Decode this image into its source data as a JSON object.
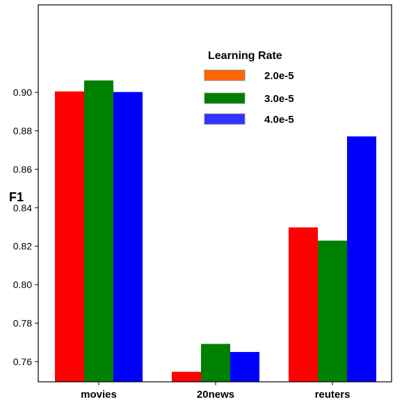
{
  "chart_data": {
    "type": "bar",
    "title": "",
    "xlabel": "",
    "ylabel": "F1",
    "ylim": [
      0.7495,
      0.9455
    ],
    "yticks": [
      "0.76",
      "0.78",
      "0.80",
      "0.82",
      "0.84",
      "0.86",
      "0.88",
      "0.90"
    ],
    "categories": [
      "movies",
      "20news",
      "reuters"
    ],
    "series": [
      {
        "name": "2.0e-5",
        "color": "#ff0000",
        "values": [
          0.9005,
          0.7547,
          0.8298
        ]
      },
      {
        "name": "3.0e-5",
        "color": "#008000",
        "values": [
          0.9062,
          0.7692,
          0.8229
        ]
      },
      {
        "name": "4.0e-5",
        "color": "#0000ff",
        "values": [
          0.9002,
          0.765,
          0.8771
        ]
      }
    ],
    "legend": {
      "title": "Learning Rate",
      "placement": "top-center",
      "swatch_colors": [
        "#ff6600",
        "#008000",
        "#3333ff"
      ]
    },
    "grid": false
  }
}
